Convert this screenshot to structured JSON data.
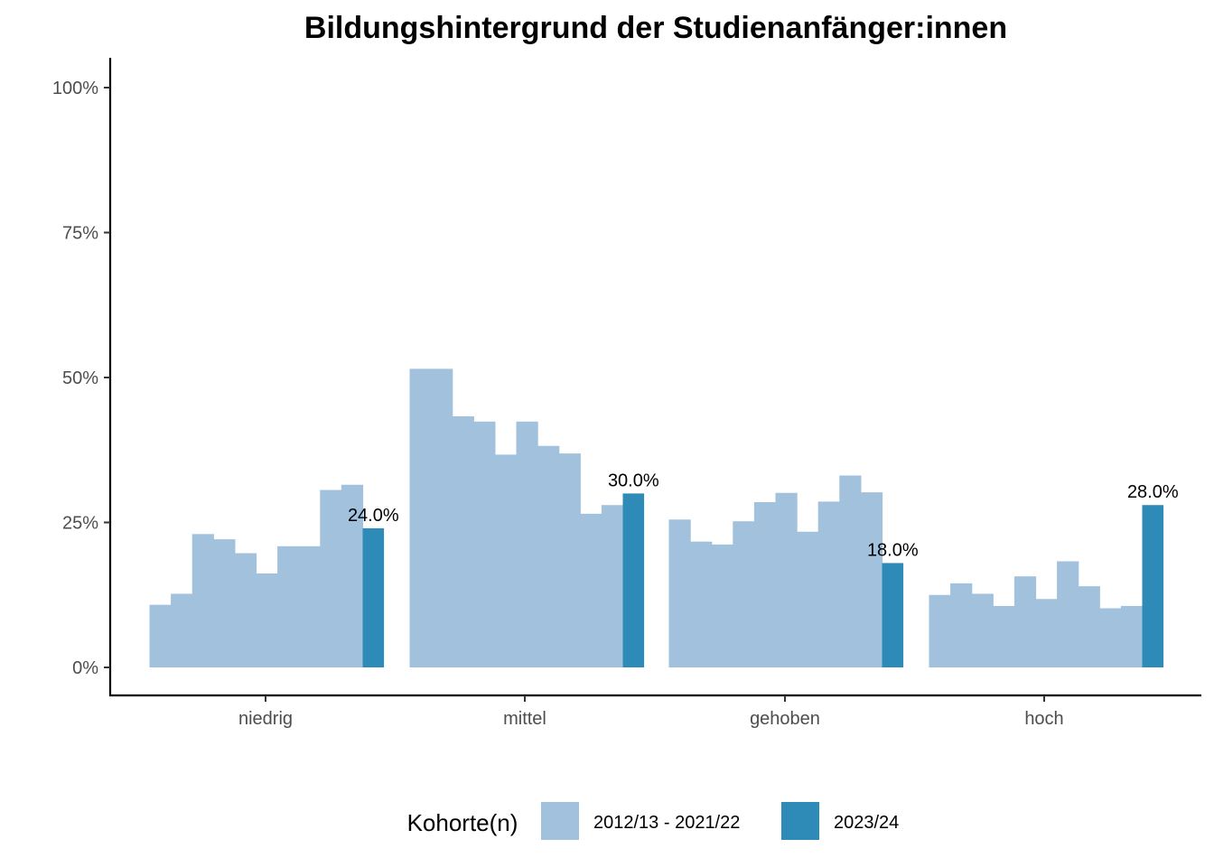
{
  "chart_data": {
    "type": "bar",
    "title": "Bildungshintergrund der Studienanfänger:innen",
    "xlabel": "",
    "ylabel": "",
    "ylim": [
      0,
      1.05
    ],
    "y_ticks": [
      0,
      0.25,
      0.5,
      0.75,
      1.0
    ],
    "y_tick_labels": [
      "0%",
      "25%",
      "50%",
      "75%",
      "100%"
    ],
    "grid": false,
    "categories": [
      "niedrig",
      "mittel",
      "gehoben",
      "hoch"
    ],
    "series": [
      {
        "name": "2012/13 - 2021/22",
        "color": "#a1c1dd",
        "values": [
          [
            0.108,
            0.127,
            0.23,
            0.221,
            0.197,
            0.162,
            0.209,
            0.209,
            0.306,
            0.315
          ],
          [
            0.515,
            0.515,
            0.433,
            0.424,
            0.367,
            0.424,
            0.382,
            0.369,
            0.265,
            0.28
          ],
          [
            0.255,
            0.217,
            0.212,
            0.252,
            0.285,
            0.301,
            0.234,
            0.286,
            0.331,
            0.302
          ],
          [
            0.125,
            0.145,
            0.127,
            0.106,
            0.157,
            0.118,
            0.183,
            0.14,
            0.102,
            0.106
          ]
        ]
      },
      {
        "name": "2023/24",
        "color": "#2e8bb8",
        "values": [
          0.24,
          0.3,
          0.18,
          0.28
        ],
        "labels": [
          "24.0%",
          "30.0%",
          "18.0%",
          "28.0%"
        ]
      }
    ],
    "legend": {
      "title": "Kohorte(n)",
      "position": "bottom",
      "items": [
        "2012/13 - 2021/22",
        "2023/24"
      ]
    }
  }
}
